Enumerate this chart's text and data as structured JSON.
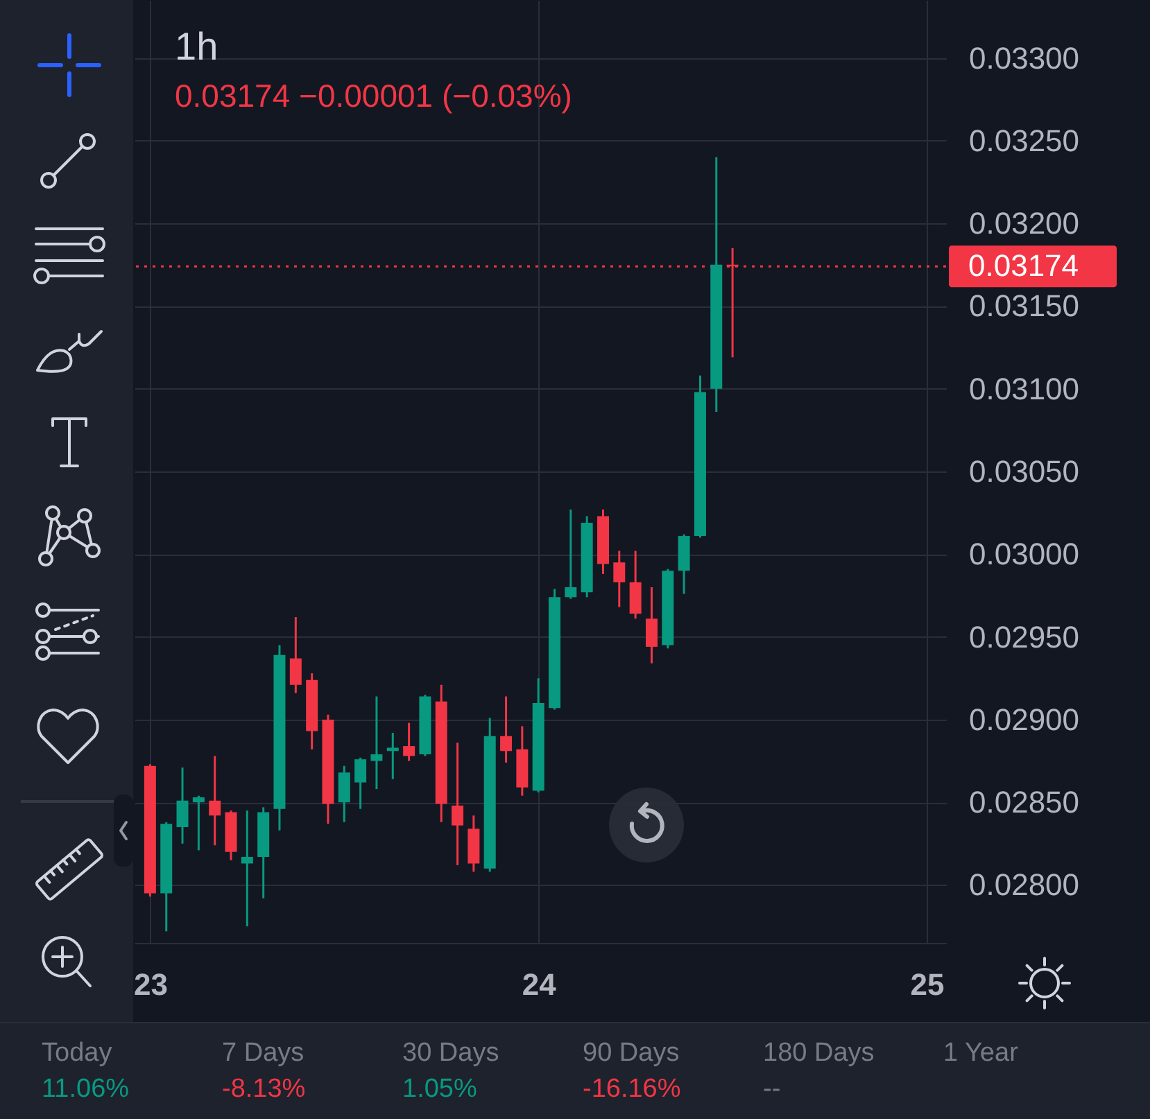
{
  "chart_data": {
    "type": "candlestick",
    "title": "1h",
    "subtitle": "0.03174 −0.00001 (−0.03%)",
    "x": [
      23,
      23.0417,
      23.0833,
      23.125,
      23.1667,
      23.2083,
      23.25,
      23.2917,
      23.3333,
      23.375,
      23.4167,
      23.4583,
      23.5,
      23.5417,
      23.5833,
      23.625,
      23.6667,
      23.7083,
      23.75,
      23.7917,
      23.8333,
      23.875,
      23.9167,
      23.9583,
      24,
      24.0417,
      24.0833,
      24.125,
      24.1667,
      24.2083,
      24.25,
      24.2917,
      24.3333,
      24.375,
      24.4167,
      24.4583,
      24.5
    ],
    "ohlc": [
      [
        0.02872,
        0.02873,
        0.02793,
        0.02795
      ],
      [
        0.02795,
        0.02838,
        0.02772,
        0.02837
      ],
      [
        0.02835,
        0.02871,
        0.02825,
        0.02851
      ],
      [
        0.0285,
        0.02854,
        0.02821,
        0.02853
      ],
      [
        0.02851,
        0.02878,
        0.02824,
        0.02842
      ],
      [
        0.02844,
        0.02845,
        0.02815,
        0.0282
      ],
      [
        0.02813,
        0.02845,
        0.02775,
        0.02817
      ],
      [
        0.02817,
        0.02847,
        0.02792,
        0.02844
      ],
      [
        0.02846,
        0.02945,
        0.02833,
        0.02939
      ],
      [
        0.02937,
        0.02962,
        0.02916,
        0.02921
      ],
      [
        0.02924,
        0.02928,
        0.02882,
        0.02893
      ],
      [
        0.029,
        0.02903,
        0.02837,
        0.02849
      ],
      [
        0.0285,
        0.02872,
        0.02838,
        0.02868
      ],
      [
        0.02862,
        0.02877,
        0.02846,
        0.02876
      ],
      [
        0.02875,
        0.02914,
        0.02858,
        0.02879
      ],
      [
        0.02881,
        0.02892,
        0.02864,
        0.02883
      ],
      [
        0.02884,
        0.02898,
        0.02875,
        0.02878
      ],
      [
        0.02879,
        0.02915,
        0.02878,
        0.02914
      ],
      [
        0.02911,
        0.02921,
        0.02838,
        0.02849
      ],
      [
        0.02848,
        0.02886,
        0.02812,
        0.02836
      ],
      [
        0.02834,
        0.02842,
        0.02808,
        0.02813
      ],
      [
        0.0281,
        0.02901,
        0.02808,
        0.0289
      ],
      [
        0.0289,
        0.02914,
        0.02874,
        0.02881
      ],
      [
        0.02882,
        0.02896,
        0.02854,
        0.02859
      ],
      [
        0.02857,
        0.02925,
        0.02856,
        0.0291
      ],
      [
        0.02907,
        0.02979,
        0.02906,
        0.02974
      ],
      [
        0.02974,
        0.03027,
        0.02973,
        0.0298
      ],
      [
        0.02977,
        0.03023,
        0.02974,
        0.03019
      ],
      [
        0.03023,
        0.03027,
        0.02988,
        0.02994
      ],
      [
        0.02995,
        0.03002,
        0.02968,
        0.02983
      ],
      [
        0.02983,
        0.03002,
        0.02961,
        0.02964
      ],
      [
        0.02961,
        0.0298,
        0.02934,
        0.02944
      ],
      [
        0.02945,
        0.02991,
        0.02943,
        0.0299
      ],
      [
        0.0299,
        0.03012,
        0.02976,
        0.03011
      ],
      [
        0.03011,
        0.03108,
        0.0301,
        0.03098
      ],
      [
        0.031,
        0.0324,
        0.03086,
        0.03175
      ],
      [
        0.03175,
        0.03185,
        0.03119,
        0.03174
      ]
    ],
    "colors": [
      "#f23645",
      "#089981",
      "#089981",
      "#089981",
      "#f23645",
      "#f23645",
      "#089981",
      "#089981",
      "#089981",
      "#f23645",
      "#f23645",
      "#f23645",
      "#089981",
      "#089981",
      "#089981",
      "#089981",
      "#f23645",
      "#089981",
      "#f23645",
      "#f23645",
      "#f23645",
      "#089981",
      "#f23645",
      "#f23645",
      "#089981",
      "#089981",
      "#089981",
      "#089981",
      "#f23645",
      "#f23645",
      "#f23645",
      "#f23645",
      "#089981",
      "#089981",
      "#089981",
      "#089981",
      "#f23645"
    ],
    "xlim": [
      22.96,
      25.05
    ],
    "xticks": [
      23,
      24,
      25
    ],
    "ylim": [
      0.02765,
      0.03335
    ],
    "yticks": [
      {
        "value": 0.028,
        "label": "0.02800"
      },
      {
        "value": 0.0285,
        "label": "0.02850"
      },
      {
        "value": 0.029,
        "label": "0.02900"
      },
      {
        "value": 0.0295,
        "label": "0.02950"
      },
      {
        "value": 0.03,
        "label": "0.03000"
      },
      {
        "value": 0.0305,
        "label": "0.03050"
      },
      {
        "value": 0.031,
        "label": "0.03100"
      },
      {
        "value": 0.0315,
        "label": "0.03150"
      },
      {
        "value": 0.032,
        "label": "0.03200"
      },
      {
        "value": 0.0325,
        "label": "0.03250"
      },
      {
        "value": 0.033,
        "label": "0.03300"
      }
    ],
    "grid": true,
    "ref_lines": [
      {
        "axis": "y",
        "value": 0.03174,
        "label": "0.03174",
        "color": "#f23645",
        "line_style": "dotted"
      }
    ],
    "annotations": [
      "Today",
      "11.06%",
      "7 Days",
      "-8.13%",
      "30 Days",
      "1.05%",
      "90 Days",
      "-16.16%",
      "180 Days",
      "--",
      "1 Year"
    ]
  }
}
